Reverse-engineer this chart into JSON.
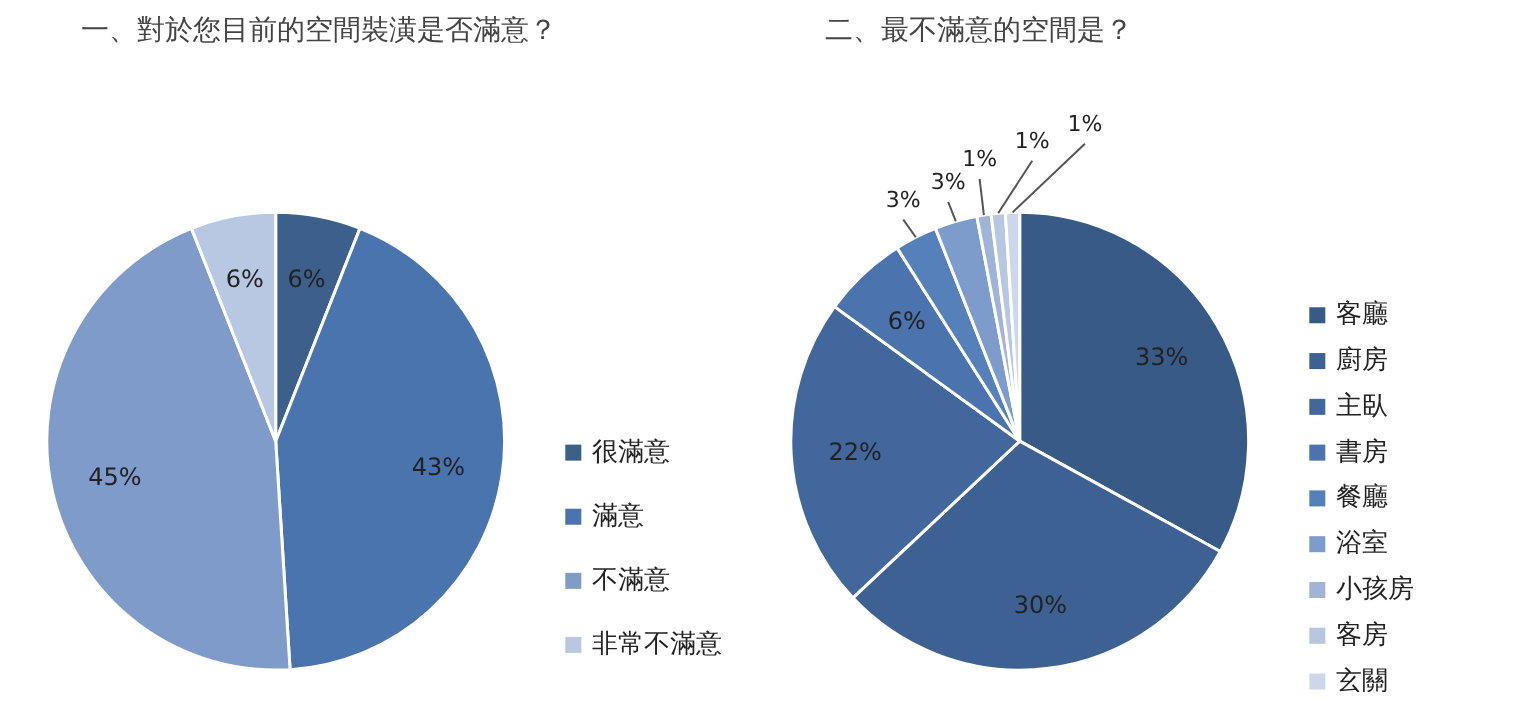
{
  "chart_data": [
    {
      "type": "pie",
      "title": "一、對於您目前的空間裝潢是否滿意？",
      "categories": [
        "很滿意",
        "滿意",
        "不滿意",
        "非常不滿意"
      ],
      "values": [
        6,
        43,
        45,
        6
      ],
      "colors": [
        "#3c5f8c",
        "#4a74ad",
        "#7f9bca",
        "#b9c8e2"
      ],
      "value_labels": [
        "6%",
        "43%",
        "45%",
        "6%"
      ],
      "legend": "right"
    },
    {
      "type": "pie",
      "title": "二、最不滿意的空間是？",
      "categories": [
        "客廳",
        "廚房",
        "主臥",
        "書房",
        "餐廳",
        "浴室",
        "小孩房",
        "客房",
        "玄關"
      ],
      "values": [
        33,
        30,
        22,
        6,
        3,
        3,
        1,
        1,
        1
      ],
      "colors": [
        "#375a87",
        "#3e6194",
        "#42679d",
        "#4b73ad",
        "#5680ba",
        "#7d9bcb",
        "#a0b4d6",
        "#b7c6e1",
        "#cdd7eb"
      ],
      "value_labels": [
        "33%",
        "30%",
        "22%",
        "6%",
        "3%",
        "3%",
        "1%",
        "1%",
        "1%"
      ],
      "legend": "right"
    }
  ]
}
